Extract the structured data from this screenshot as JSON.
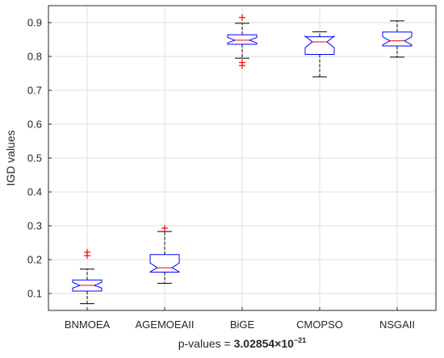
{
  "chart_data": {
    "type": "boxplot",
    "ylabel": "IGD values",
    "xlabel": "p-values = ",
    "xlabel_value": "3.02854×10",
    "xlabel_exponent": "−21",
    "ylim": [
      0.05,
      0.95
    ],
    "yticks": [
      0.1,
      0.2,
      0.3,
      0.4,
      0.5,
      0.6,
      0.7,
      0.8,
      0.9
    ],
    "grid": true,
    "box_color": "#0000ff",
    "median_color": "#ff0000",
    "outlier_color": "#ff0000",
    "whisker_color": "#000000",
    "categories": [
      "BNMOEA",
      "AGEMOEAII",
      "BiGE",
      "CMOPSO",
      "NSGAII"
    ],
    "series": [
      {
        "category": "BNMOEA",
        "whisker_low": 0.07,
        "q1": 0.107,
        "median": 0.124,
        "q3": 0.14,
        "whisker_high": 0.172,
        "notch_low": 0.116,
        "notch_high": 0.133,
        "outliers": [
          0.212,
          0.222
        ]
      },
      {
        "category": "AGEMOEAII",
        "whisker_low": 0.13,
        "q1": 0.163,
        "median": 0.176,
        "q3": 0.215,
        "whisker_high": 0.283,
        "notch_low": 0.164,
        "notch_high": 0.19,
        "outliers": [
          0.293
        ]
      },
      {
        "category": "BiGE",
        "whisker_low": 0.795,
        "q1": 0.836,
        "median": 0.848,
        "q3": 0.864,
        "whisker_high": 0.898,
        "notch_low": 0.84,
        "notch_high": 0.856,
        "outliers": [
          0.773,
          0.782,
          0.915
        ]
      },
      {
        "category": "CMOPSO",
        "whisker_low": 0.74,
        "q1": 0.806,
        "median": 0.843,
        "q3": 0.858,
        "whisker_high": 0.873,
        "notch_low": 0.826,
        "notch_high": 0.86,
        "outliers": []
      },
      {
        "category": "NSGAII",
        "whisker_low": 0.798,
        "q1": 0.831,
        "median": 0.846,
        "q3": 0.872,
        "whisker_high": 0.905,
        "notch_low": 0.834,
        "notch_high": 0.858,
        "outliers": []
      }
    ]
  }
}
